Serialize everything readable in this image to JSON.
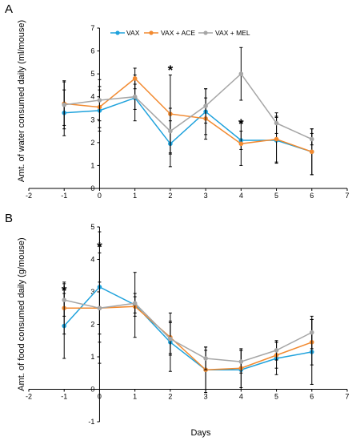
{
  "figure": {
    "xlabel": "Days",
    "legend": [
      {
        "label": "VAX",
        "color": "#1fa2dc"
      },
      {
        "label": "VAX + ACE",
        "color": "#f28a30"
      },
      {
        "label": "VAX + MEL",
        "color": "#a6a6a6"
      }
    ],
    "colors": {
      "VAX": "#1fa2dc",
      "VAX + ACE": "#f28a30",
      "VAX + MEL": "#a6a6a6",
      "errorbar": "#000000"
    }
  },
  "chart_data": [
    {
      "panel": "A",
      "type": "line",
      "ylabel": "Amt. of water consumed daily (ml/mouse)",
      "xlim": [
        -2,
        7
      ],
      "ylim": [
        0,
        7
      ],
      "xticks": [
        "-2",
        "-1",
        "0",
        "1",
        "2",
        "3",
        "4",
        "5",
        "6",
        "7"
      ],
      "yticks": [
        "0",
        "1",
        "2",
        "3",
        "4",
        "5",
        "6",
        "7"
      ],
      "legend_position": "top",
      "x": [
        -1,
        0,
        1,
        2,
        3,
        4,
        5,
        6
      ],
      "series": [
        {
          "name": "VAX",
          "values": [
            3.3,
            3.4,
            3.95,
            1.95,
            3.35,
            2.1,
            2.1,
            1.6
          ],
          "err": [
            1.0,
            0.9,
            1.0,
            1.0,
            1.0,
            0.4,
            1.0,
            1.0
          ]
        },
        {
          "name": "VAX + ACE",
          "values": [
            3.7,
            3.55,
            4.8,
            3.25,
            3.05,
            1.95,
            2.15,
            1.6
          ],
          "err": [
            0.95,
            0.9,
            0.45,
            1.7,
            0.9,
            0.95,
            1.0,
            1.0
          ]
        },
        {
          "name": "VAX + MEL",
          "values": [
            3.65,
            3.85,
            4.0,
            2.5,
            3.6,
            5.0,
            2.85,
            2.15
          ],
          "err": [
            1.05,
            0.9,
            0.55,
            1.0,
            0.75,
            1.15,
            0.45,
            0.25
          ]
        }
      ],
      "annotations": [
        {
          "text": "*",
          "x": 2,
          "y": 5.25
        },
        {
          "text": "*",
          "x": 4,
          "y": 2.9
        }
      ]
    },
    {
      "panel": "B",
      "type": "line",
      "ylabel": "Amt. of food consumed daily (g/mouse)",
      "xlim": [
        -2,
        7
      ],
      "ylim": [
        -1,
        5
      ],
      "xticks": [
        "-2",
        "-1",
        "0",
        "1",
        "2",
        "3",
        "4",
        "5",
        "6",
        "7"
      ],
      "yticks": [
        "-1",
        "0",
        "1",
        "2",
        "3",
        "4",
        "5"
      ],
      "x": [
        -1,
        0,
        1,
        2,
        3,
        4,
        5,
        6
      ],
      "series": [
        {
          "name": "VAX",
          "values": [
            1.95,
            3.15,
            2.6,
            1.45,
            0.6,
            0.6,
            0.95,
            1.15
          ],
          "err": [
            1.0,
            1.7,
            1.0,
            0.9,
            0.6,
            0.6,
            0.5,
            1.0
          ]
        },
        {
          "name": "VAX + ACE",
          "values": [
            2.5,
            2.5,
            2.55,
            1.6,
            0.6,
            0.65,
            1.05,
            1.45
          ],
          "err": [
            0.8,
            1.7,
            0.3,
            0.5,
            0.7,
            0.6,
            0.4,
            0.7
          ]
        },
        {
          "name": "VAX + MEL",
          "values": [
            2.75,
            2.5,
            2.65,
            1.55,
            0.95,
            0.85,
            1.2,
            1.75
          ],
          "err": [
            0.5,
            0.8,
            0.3,
            0.5,
            0.35,
            0.35,
            0.3,
            0.5
          ]
        }
      ],
      "annotations": [
        {
          "text": "*",
          "x": -1,
          "y": 3.1
        },
        {
          "text": "*",
          "x": 0,
          "y": 4.45
        }
      ]
    }
  ]
}
